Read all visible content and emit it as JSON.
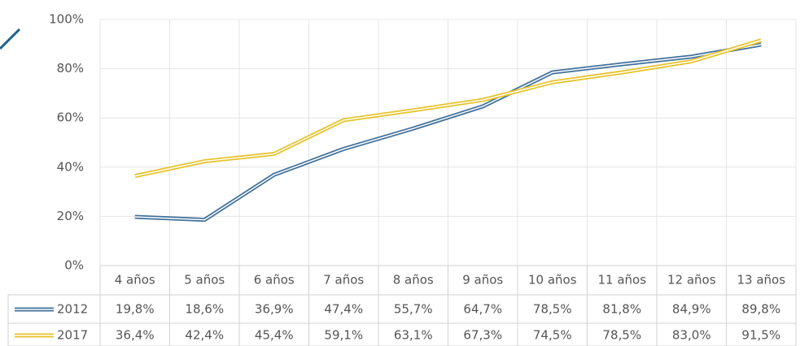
{
  "chart_data": {
    "type": "line",
    "categories": [
      "4 años",
      "5 años",
      "6 años",
      "7 años",
      "8 años",
      "9 años",
      "10 años",
      "11 años",
      "12 años",
      "13 años"
    ],
    "series": [
      {
        "name": "2012",
        "color": "#41719c",
        "values": [
          19.8,
          18.6,
          36.9,
          47.4,
          55.7,
          64.7,
          78.5,
          81.8,
          84.9,
          89.8
        ],
        "value_labels": [
          "19,8%",
          "18,6%",
          "36,9%",
          "47,4%",
          "55,7%",
          "64,7%",
          "78,5%",
          "81,8%",
          "84,9%",
          "89,8%"
        ]
      },
      {
        "name": "2017",
        "color": "#e6c229",
        "values": [
          36.4,
          42.4,
          45.4,
          59.1,
          63.1,
          67.3,
          74.5,
          78.5,
          83.0,
          91.5
        ],
        "value_labels": [
          "36,4%",
          "42,4%",
          "45,4%",
          "59,1%",
          "63,1%",
          "67,3%",
          "74,5%",
          "78,5%",
          "83,0%",
          "91,5%"
        ]
      }
    ],
    "ylim": [
      0,
      100
    ],
    "yticks": [
      {
        "value": 0,
        "label": "0%"
      },
      {
        "value": 20,
        "label": "20%"
      },
      {
        "value": 40,
        "label": "40%"
      },
      {
        "value": 60,
        "label": "60%"
      },
      {
        "value": 80,
        "label": "80%"
      },
      {
        "value": 100,
        "label": "100%"
      }
    ],
    "grid": true
  }
}
